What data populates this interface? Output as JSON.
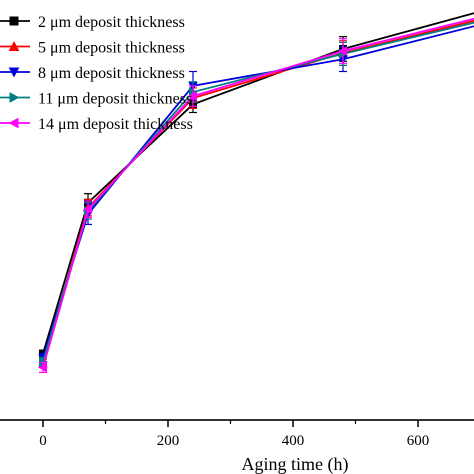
{
  "chart_data": {
    "type": "line",
    "title": "",
    "xlabel": "Aging time (h)",
    "ylabel": "",
    "xlim": [
      -120,
      720
    ],
    "ylim": [
      0,
      1
    ],
    "x_ticks": [
      "0",
      "200",
      "400",
      "600"
    ],
    "legend_position": "top-left",
    "series": [
      {
        "name": "2 μm deposit thickness",
        "color": "#000000",
        "marker": "square",
        "x": [
          0,
          72,
          240,
          480,
          720
        ],
        "y": [
          0.162,
          0.53,
          0.77,
          0.905,
          1.005
        ],
        "err": [
          0.008,
          0.022,
          0.02,
          0.03,
          0.0
        ]
      },
      {
        "name": "5 μm deposit thickness",
        "color": "#ff0000",
        "marker": "triangle-up",
        "x": [
          0,
          72,
          240,
          480,
          720
        ],
        "y": [
          0.138,
          0.518,
          0.785,
          0.895,
          0.985
        ],
        "err": [
          0.01,
          0.02,
          0.025,
          0.03,
          0.0
        ]
      },
      {
        "name": "8 μm deposit thickness",
        "color": "#0000dd",
        "marker": "triangle-down",
        "x": [
          0,
          72,
          240,
          480,
          720
        ],
        "y": [
          0.152,
          0.502,
          0.815,
          0.88,
          0.972
        ],
        "err": [
          0.01,
          0.025,
          0.035,
          0.03,
          0.0
        ]
      },
      {
        "name": "11 μm deposit thickness",
        "color": "#008080",
        "marker": "triangle-right",
        "x": [
          0,
          72,
          240,
          480,
          720
        ],
        "y": [
          0.142,
          0.51,
          0.8,
          0.893,
          0.98
        ],
        "err": [
          0.01,
          0.02,
          0.025,
          0.028,
          0.0
        ]
      },
      {
        "name": "14 μm deposit thickness",
        "color": "#ff00ff",
        "marker": "triangle-left",
        "x": [
          0,
          72,
          240,
          480,
          720
        ],
        "y": [
          0.128,
          0.514,
          0.79,
          0.9,
          0.99
        ],
        "err": [
          0.012,
          0.02,
          0.025,
          0.03,
          0.0
        ]
      }
    ]
  }
}
